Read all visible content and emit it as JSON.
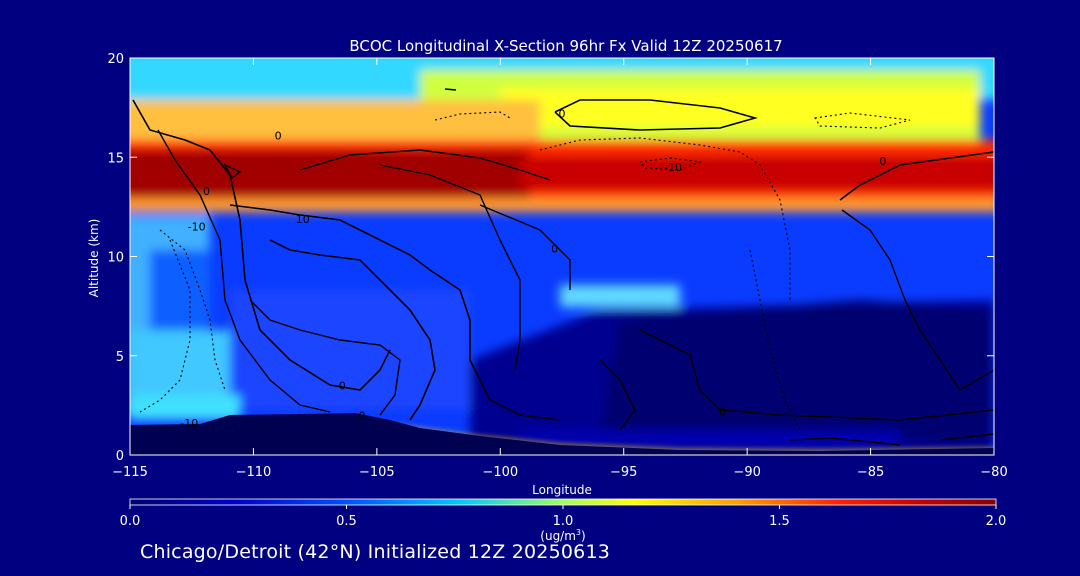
{
  "chart_data": {
    "type": "heatmap",
    "title": "BCOC Longitudinal X-Section 96hr  Fx Valid 12Z 20250617",
    "xlabel": "Longitude",
    "ylabel": "Altitude (km)",
    "xlim": [
      -115,
      -80
    ],
    "ylim": [
      0,
      20
    ],
    "x_ticks": [
      -115,
      -110,
      -105,
      -100,
      -95,
      -90,
      -85,
      -80
    ],
    "x_tick_labels": [
      "−115",
      "−110",
      "−105",
      "−100",
      "−95",
      "−90",
      "−85",
      "−80"
    ],
    "y_ticks": [
      0,
      5,
      10,
      15,
      20
    ],
    "y_tick_labels": [
      "0",
      "5",
      "10",
      "15",
      "20"
    ],
    "colorbar": {
      "label_main": "(ug/m",
      "label_sup": "3",
      "label_end": ")",
      "range": [
        0.0,
        2.0
      ],
      "ticks": [
        0.0,
        0.5,
        1.0,
        1.5,
        2.0
      ],
      "tick_labels": [
        "0.0",
        "0.5",
        "1.0",
        "1.5",
        "2.0"
      ],
      "colors": [
        "#000070",
        "#0000c8",
        "#0050ff",
        "#00c8ff",
        "#a0ff60",
        "#ffff00",
        "#ffa000",
        "#ff2000",
        "#c00000",
        "#8b0000"
      ]
    },
    "contour_labels": [
      {
        "text": "0",
        "lon": -111.9,
        "alt": 13.3
      },
      {
        "text": "0",
        "lon": -109.0,
        "alt": 16.1
      },
      {
        "text": "-10",
        "lon": -112.3,
        "alt": 11.5
      },
      {
        "text": "-10",
        "lon": -112.6,
        "alt": 1.6
      },
      {
        "text": "10",
        "lon": -108.0,
        "alt": 11.9
      },
      {
        "text": "0",
        "lon": -97.5,
        "alt": 17.2
      },
      {
        "text": "-10",
        "lon": -93.0,
        "alt": 14.5
      },
      {
        "text": "0",
        "lon": -84.5,
        "alt": 14.8
      },
      {
        "text": "0",
        "lon": -97.8,
        "alt": 10.4
      },
      {
        "text": "0",
        "lon": -106.4,
        "alt": 3.5
      },
      {
        "text": "0",
        "lon": -105.6,
        "alt": 2.0
      },
      {
        "text": "0",
        "lon": -91.0,
        "alt": 2.2
      }
    ]
  },
  "footer": {
    "subtitle": "Chicago/Detroit (42°N) Initialized 12Z 20250613"
  }
}
